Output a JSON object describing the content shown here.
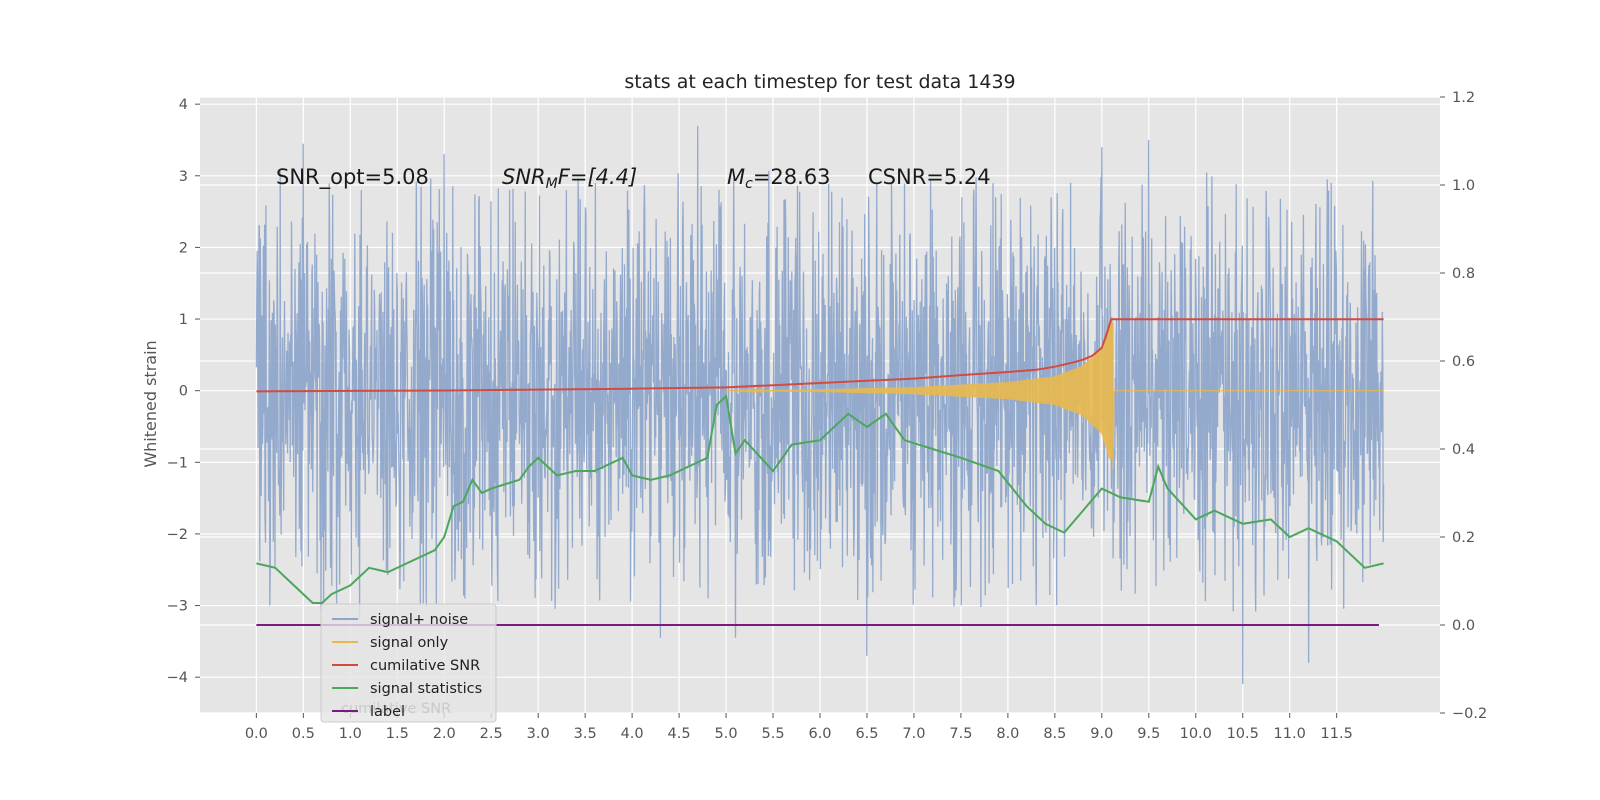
{
  "chart_data": {
    "type": "line",
    "title": "stats at each timestep for test data 1439",
    "ylabel": "Whitened strain",
    "xlabel": "",
    "xlim": [
      -0.6,
      12.6
    ],
    "ylim": [
      -4.5,
      4.1
    ],
    "y2lim": [
      -0.2,
      1.2
    ],
    "grid": true,
    "legend_position": "lower-left",
    "x_ticks": [
      "0.0",
      "0.5",
      "1.0",
      "1.5",
      "2.0",
      "2.5",
      "3.0",
      "3.5",
      "4.0",
      "4.5",
      "5.0",
      "5.5",
      "6.0",
      "6.5",
      "7.0",
      "7.5",
      "8.0",
      "8.5",
      "9.0",
      "9.5",
      "10.0",
      "10.5",
      "11.0",
      "11.5"
    ],
    "y_ticks": [
      "4",
      "3",
      "2",
      "1",
      "0",
      "−1",
      "−2",
      "−3",
      "−4"
    ],
    "y2_ticks": [
      "1.2",
      "1.0",
      "0.8",
      "0.6",
      "0.4",
      "0.2",
      "0.0",
      "−0.2"
    ],
    "annotations": {
      "snr_opt": "SNR_opt=5.08",
      "snr_mf_base": "SNR",
      "snr_mf_sub": "M",
      "snr_mf_rest": "F=[4.4]",
      "mc_base": "M",
      "mc_sub": "c",
      "mc_rest": "=28.63",
      "csnr": "CSNR=5.24"
    },
    "series": [
      {
        "name": "signal+ noise",
        "color": "#8fa6cb",
        "axis": "left",
        "kind": "noise",
        "x_range": [
          0.0,
          12.0
        ],
        "typical_range": [
          -1.9,
          1.9
        ],
        "peaks": [
          {
            "x": 0.5,
            "y": 3.45
          },
          {
            "x": 1.1,
            "y": -3.2
          },
          {
            "x": 2.0,
            "y": 3.3
          },
          {
            "x": 4.3,
            "y": -3.45
          },
          {
            "x": 4.7,
            "y": 3.7
          },
          {
            "x": 5.1,
            "y": -3.45
          },
          {
            "x": 6.5,
            "y": -3.7
          },
          {
            "x": 9.0,
            "y": 3.4
          },
          {
            "x": 9.5,
            "y": 3.5
          },
          {
            "x": 10.5,
            "y": -4.1
          },
          {
            "x": 11.2,
            "y": -3.8
          },
          {
            "x": 11.4,
            "y": 2.95
          }
        ]
      },
      {
        "name": "signal only",
        "color": "#e8b84d",
        "axis": "left",
        "kind": "chirp",
        "x_range": [
          5.0,
          9.12
        ],
        "amplitude_points": [
          [
            5.0,
            0.0
          ],
          [
            6.0,
            0.02
          ],
          [
            7.0,
            0.05
          ],
          [
            8.0,
            0.12
          ],
          [
            8.5,
            0.2
          ],
          [
            8.8,
            0.35
          ],
          [
            9.0,
            0.6
          ],
          [
            9.08,
            0.95
          ]
        ]
      },
      {
        "name": "cumilative SNR",
        "color": "#d24b40",
        "axis": "right",
        "x": [
          0.0,
          1.0,
          2.0,
          3.0,
          4.0,
          5.0,
          5.5,
          6.0,
          6.5,
          7.0,
          7.5,
          8.0,
          8.3,
          8.5,
          8.7,
          8.8,
          8.9,
          9.0,
          9.05,
          9.1,
          12.0
        ],
        "y": [
          0.531,
          0.532,
          0.533,
          0.535,
          0.537,
          0.54,
          0.545,
          0.55,
          0.555,
          0.56,
          0.568,
          0.575,
          0.58,
          0.587,
          0.597,
          0.603,
          0.612,
          0.63,
          0.66,
          0.695,
          0.695
        ]
      },
      {
        "name": "signal statistics",
        "color": "#4ca65b",
        "axis": "right",
        "x": [
          0.0,
          0.2,
          0.4,
          0.6,
          0.7,
          0.8,
          1.0,
          1.2,
          1.4,
          1.6,
          1.9,
          2.0,
          2.1,
          2.2,
          2.3,
          2.4,
          2.5,
          2.8,
          2.9,
          3.0,
          3.2,
          3.4,
          3.6,
          3.9,
          4.0,
          4.2,
          4.4,
          4.6,
          4.8,
          4.9,
          5.0,
          5.1,
          5.2,
          5.5,
          5.7,
          6.0,
          6.3,
          6.5,
          6.7,
          6.9,
          7.2,
          7.5,
          7.9,
          8.2,
          8.4,
          8.6,
          8.8,
          9.0,
          9.2,
          9.5,
          9.6,
          9.7,
          10.0,
          10.2,
          10.5,
          10.8,
          11.0,
          11.2,
          11.5,
          11.8,
          12.0
        ],
        "y": [
          0.14,
          0.13,
          0.09,
          0.05,
          0.05,
          0.07,
          0.09,
          0.13,
          0.12,
          0.14,
          0.17,
          0.2,
          0.27,
          0.28,
          0.33,
          0.3,
          0.31,
          0.33,
          0.36,
          0.38,
          0.34,
          0.35,
          0.35,
          0.38,
          0.34,
          0.33,
          0.34,
          0.36,
          0.38,
          0.5,
          0.52,
          0.39,
          0.42,
          0.35,
          0.41,
          0.42,
          0.48,
          0.45,
          0.48,
          0.42,
          0.4,
          0.38,
          0.35,
          0.27,
          0.23,
          0.21,
          0.26,
          0.31,
          0.29,
          0.28,
          0.36,
          0.31,
          0.24,
          0.26,
          0.23,
          0.24,
          0.2,
          0.22,
          0.19,
          0.13,
          0.14
        ]
      },
      {
        "name": "label",
        "color": "#7a1a80",
        "axis": "right",
        "x": [
          0.0,
          11.95
        ],
        "y": [
          0.0,
          0.0
        ]
      }
    ],
    "legend_ghost_text": "cumilative SNR"
  }
}
